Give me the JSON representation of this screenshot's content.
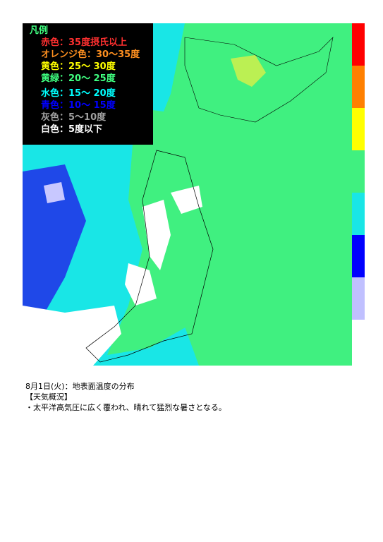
{
  "legend": {
    "title": "凡例",
    "items": [
      {
        "label": "赤色：35度摂氏以上",
        "color": "#ff3030"
      },
      {
        "label": "オレンジ色：30～35度",
        "color": "#ff9020"
      },
      {
        "label": "黄色：25～ 30度",
        "color": "#ffff00"
      },
      {
        "label": "黄緑：20～ 25度",
        "color": "#40ff80"
      },
      {
        "label": "水色：15～ 20度",
        "color": "#00ffff"
      },
      {
        "label": "青色：10～ 15度",
        "color": "#0000ff"
      },
      {
        "label": "灰色：5～10度",
        "color": "#a0a0a0"
      },
      {
        "label": "白色：5度以下",
        "color": "#ffffff"
      }
    ]
  },
  "caption": [
    "8月1日(火)：地表面温度の分布",
    "【天気概況】",
    "・太平洋高気圧に広く覆われ、晴れて猛烈な暑さとなる。"
  ]
}
